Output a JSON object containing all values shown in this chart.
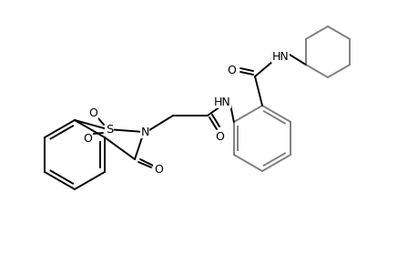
{
  "background_color": "#ffffff",
  "line_color": "#000000",
  "bond_color": "#808080",
  "lw": 1.4,
  "lw_thick": 1.6,
  "figsize": [
    4.6,
    3.0
  ],
  "dpi": 100,
  "xlim": [
    0,
    460
  ],
  "ylim": [
    0,
    300
  ]
}
